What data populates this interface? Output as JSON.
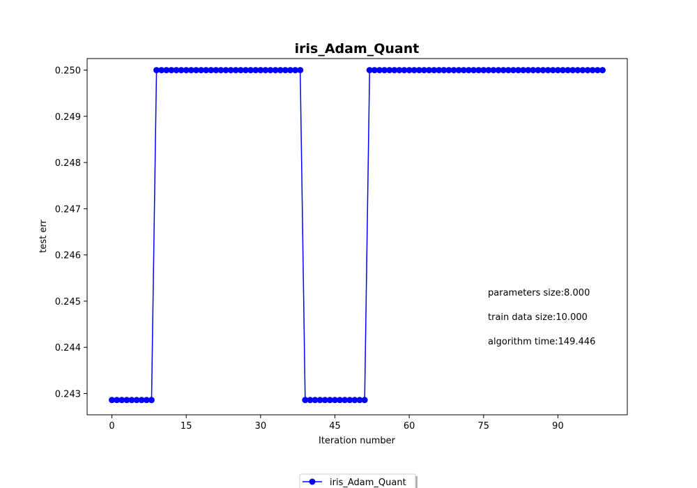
{
  "chart_data": {
    "type": "line",
    "title": "iris_Adam_Quant",
    "xlabel": "Iteration number",
    "ylabel": "test err",
    "xlim": [
      -5,
      104
    ],
    "ylim": [
      0.24254,
      0.25025
    ],
    "xticks": [
      0,
      15,
      30,
      45,
      60,
      75,
      90
    ],
    "yticks": [
      0.243,
      0.244,
      0.245,
      0.246,
      0.247,
      0.248,
      0.249,
      0.25
    ],
    "ytick_labels": [
      "0.243",
      "0.244",
      "0.245",
      "0.246",
      "0.247",
      "0.248",
      "0.249",
      "0.250"
    ],
    "grid": false,
    "legend_position": "bottom-center",
    "annotations": [
      "parameters size:8.000",
      "train data size:10.000",
      "algorithm time:149.446"
    ],
    "series": [
      {
        "name": "iris_Adam_Quant",
        "color": "#0000ff",
        "marker": "circle",
        "segments": [
          {
            "from": 0,
            "to": 8,
            "value": 0.24286
          },
          {
            "from": 9,
            "to": 38,
            "value": 0.25
          },
          {
            "from": 39,
            "to": 51,
            "value": 0.24286
          },
          {
            "from": 52,
            "to": 99,
            "value": 0.25
          }
        ]
      }
    ]
  }
}
